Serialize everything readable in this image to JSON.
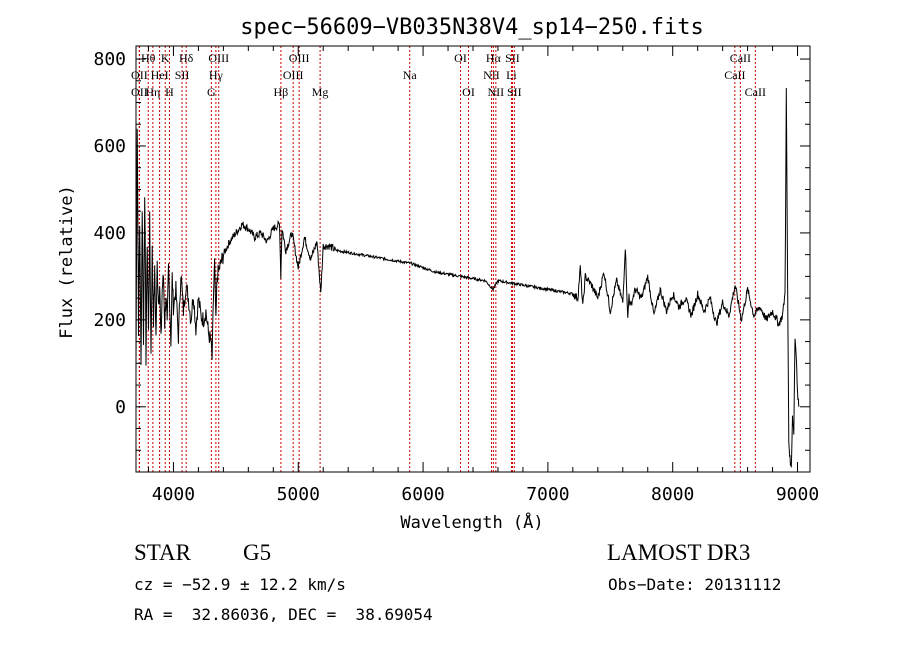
{
  "chart_data": {
    "type": "line",
    "title": "spec−56609−VB035N38V4_sp14−250.fits",
    "xlabel": "Wavelength (Å)",
    "ylabel": "Flux (relative)",
    "xlim": [
      3700,
      9100
    ],
    "ylim": [
      -150,
      830
    ],
    "x_ticks": [
      4000,
      5000,
      6000,
      7000,
      8000,
      9000
    ],
    "y_ticks": [
      0,
      200,
      400,
      600,
      800
    ],
    "series": [
      {
        "name": "spectrum",
        "x": [
          3700,
          3710,
          3720,
          3730,
          3740,
          3750,
          3760,
          3770,
          3780,
          3790,
          3800,
          3810,
          3820,
          3830,
          3840,
          3850,
          3860,
          3870,
          3880,
          3890,
          3900,
          3910,
          3920,
          3930,
          3940,
          3950,
          3960,
          3970,
          3980,
          3990,
          4000,
          4020,
          4040,
          4060,
          4080,
          4100,
          4120,
          4140,
          4160,
          4180,
          4200,
          4220,
          4240,
          4260,
          4280,
          4300,
          4310,
          4320,
          4330,
          4340,
          4350,
          4370,
          4400,
          4450,
          4500,
          4550,
          4600,
          4650,
          4700,
          4750,
          4800,
          4850,
          4860,
          4870,
          4900,
          4950,
          5000,
          5050,
          5100,
          5150,
          5180,
          5200,
          5250,
          5300,
          5400,
          5500,
          5600,
          5700,
          5800,
          5900,
          6000,
          6100,
          6200,
          6300,
          6400,
          6500,
          6560,
          6600,
          6700,
          6800,
          6900,
          7000,
          7100,
          7200,
          7240,
          7260,
          7280,
          7300,
          7350,
          7400,
          7450,
          7500,
          7550,
          7600,
          7620,
          7640,
          7650,
          7660,
          7700,
          7750,
          7800,
          7850,
          7900,
          7950,
          8000,
          8050,
          8100,
          8150,
          8200,
          8250,
          8300,
          8350,
          8400,
          8450,
          8500,
          8550,
          8600,
          8650,
          8700,
          8750,
          8800,
          8850,
          8880,
          8900,
          8910,
          8920,
          8930,
          8940,
          8950,
          8960,
          8970,
          8980,
          8990,
          9000,
          9010
        ],
        "values": [
          100,
          650,
          180,
          420,
          90,
          460,
          140,
          500,
          110,
          380,
          170,
          430,
          120,
          360,
          200,
          310,
          160,
          330,
          240,
          280,
          150,
          270,
          300,
          190,
          260,
          180,
          320,
          240,
          150,
          300,
          230,
          270,
          160,
          310,
          220,
          280,
          250,
          200,
          260,
          180,
          250,
          210,
          200,
          220,
          170,
          150,
          110,
          250,
          330,
          190,
          300,
          320,
          350,
          380,
          400,
          420,
          410,
          390,
          400,
          380,
          410,
          420,
          300,
          410,
          360,
          400,
          320,
          390,
          340,
          380,
          260,
          370,
          370,
          360,
          355,
          350,
          345,
          340,
          335,
          330,
          320,
          310,
          305,
          300,
          295,
          290,
          270,
          290,
          285,
          280,
          275,
          270,
          265,
          260,
          250,
          320,
          230,
          300,
          280,
          250,
          310,
          220,
          290,
          240,
          370,
          200,
          260,
          230,
          270,
          250,
          300,
          210,
          270,
          220,
          260,
          230,
          250,
          210,
          260,
          220,
          250,
          190,
          240,
          210,
          280,
          200,
          270,
          210,
          230,
          200,
          220,
          190,
          210,
          260,
          730,
          320,
          -80,
          -120,
          -140,
          -20,
          -60,
          160,
          120,
          30,
          0
        ]
      }
    ],
    "line_markers": [
      {
        "label": "OII",
        "wavelength": 3727,
        "row": 3
      },
      {
        "label": "Hθ",
        "wavelength": 3798,
        "row": 1
      },
      {
        "label": "OII",
        "wavelength": 3727,
        "row": 2
      },
      {
        "label": "Hη",
        "wavelength": 3835,
        "row": 3
      },
      {
        "label": "HeI",
        "wavelength": 3889,
        "row": 2
      },
      {
        "label": "K",
        "wavelength": 3934,
        "row": 1
      },
      {
        "label": "H",
        "wavelength": 3968,
        "row": 3
      },
      {
        "label": "SII",
        "wavelength": 4069,
        "row": 2
      },
      {
        "label": "Hδ",
        "wavelength": 4102,
        "row": 1
      },
      {
        "label": "G",
        "wavelength": 4304,
        "row": 3
      },
      {
        "label": "Hγ",
        "wavelength": 4340,
        "row": 2
      },
      {
        "label": "OIII",
        "wavelength": 4363,
        "row": 1
      },
      {
        "label": "Hβ",
        "wavelength": 4861,
        "row": 3
      },
      {
        "label": "OIII",
        "wavelength": 4959,
        "row": 2
      },
      {
        "label": "OIII",
        "wavelength": 5007,
        "row": 1
      },
      {
        "label": "Mg",
        "wavelength": 5175,
        "row": 3
      },
      {
        "label": "Na",
        "wavelength": 5893,
        "row": 2
      },
      {
        "label": "OI",
        "wavelength": 6300,
        "row": 1
      },
      {
        "label": "OI",
        "wavelength": 6364,
        "row": 3
      },
      {
        "label": "NII",
        "wavelength": 6548,
        "row": 2
      },
      {
        "label": "Hα",
        "wavelength": 6563,
        "row": 1
      },
      {
        "label": "NII",
        "wavelength": 6583,
        "row": 3
      },
      {
        "label": "Li",
        "wavelength": 6708,
        "row": 2
      },
      {
        "label": "SII",
        "wavelength": 6716,
        "row": 1
      },
      {
        "label": "SII",
        "wavelength": 6731,
        "row": 3
      },
      {
        "label": "CaII",
        "wavelength": 8498,
        "row": 2
      },
      {
        "label": "CaII",
        "wavelength": 8542,
        "row": 1
      },
      {
        "label": "CaII",
        "wavelength": 8662,
        "row": 3
      }
    ],
    "marker_color": "#cc0000",
    "line_color": "#000000"
  },
  "info": {
    "object_class": "STAR",
    "subclass": "G5",
    "survey": "LAMOST DR3",
    "cz": "cz = −52.9 ± 12.2 km/s",
    "obs_date": "Obs−Date: 20131112",
    "coords": "RA =  32.86036, DEC =  38.69054"
  }
}
